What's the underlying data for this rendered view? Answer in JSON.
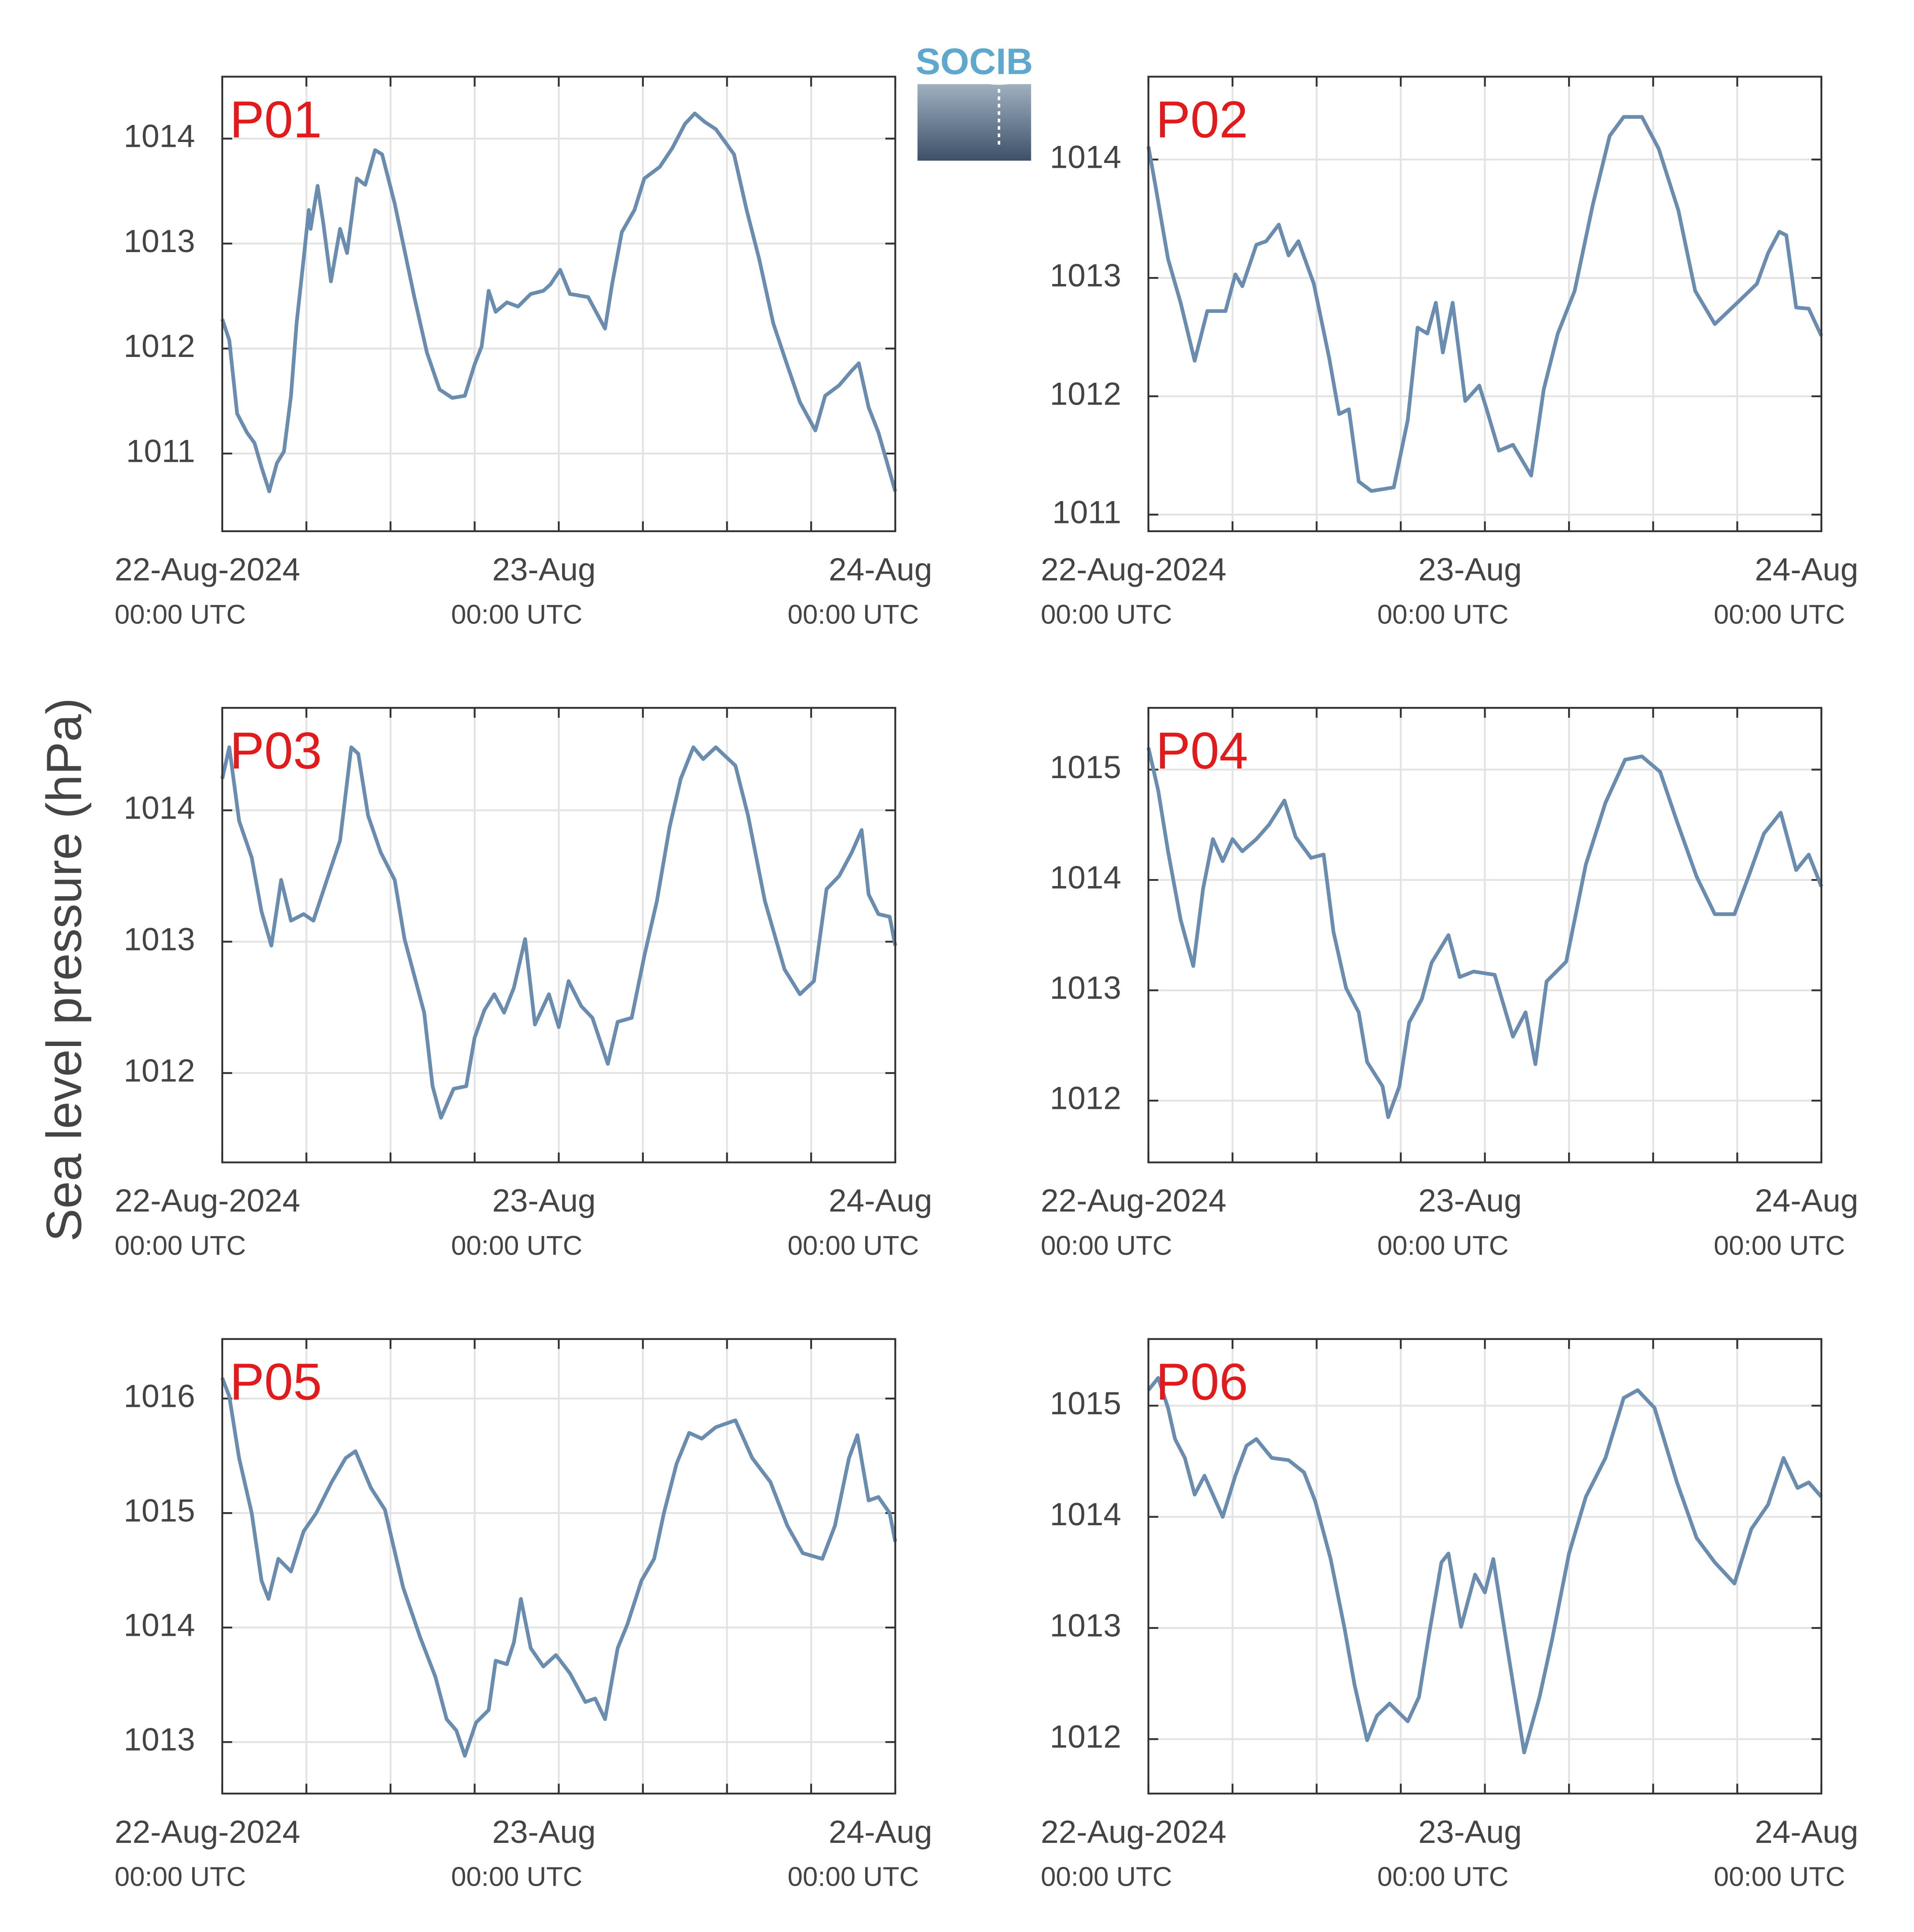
{
  "logo": "SOCIB",
  "ylabel": "Sea level pressure (hPa)",
  "chart_data": [
    {
      "type": "line",
      "title": "P01",
      "xlim": [
        0,
        48
      ],
      "ylim": [
        1010.26,
        1014.59
      ],
      "yticks": [
        1011,
        1012,
        1013,
        1014
      ],
      "grid": true,
      "xticks": [
        {
          "value": 0,
          "label": "22-Aug-2024",
          "sublabel": "00:00 UTC"
        },
        6,
        12,
        18,
        {
          "value": 24,
          "label": "23-Aug",
          "sublabel": "00:00 UTC"
        },
        30,
        36,
        42,
        {
          "value": 48,
          "label": "24-Aug",
          "sublabel": "00:00 UTC"
        }
      ],
      "color": "#6a8caf",
      "x": [
        0,
        0.5,
        1.06,
        1.76,
        2.3,
        2.8,
        3.35,
        3.9,
        4.4,
        4.9,
        5.3,
        5.8,
        6.17,
        6.3,
        6.8,
        7.2,
        7.75,
        8.4,
        8.9,
        9.6,
        10.2,
        10.9,
        11.4,
        12.3,
        13.7,
        14.6,
        15.5,
        16.4,
        17.3,
        18,
        18.5,
        19,
        19.5,
        20.3,
        21.1,
        22,
        22.9,
        23.4,
        24.1,
        24.8,
        26.1,
        27.3,
        27.8,
        28.5,
        29.4,
        30.1,
        31.2,
        32.1,
        33,
        33.7,
        34.4,
        35.2,
        36.5,
        37.4,
        38.3,
        39.3,
        40.2,
        41.2,
        42.3,
        43,
        44,
        44.9,
        45.4,
        46.1,
        46.8,
        48
      ],
      "values": [
        1012.28,
        1012.08,
        1011.38,
        1011.2,
        1011.1,
        1010.87,
        1010.64,
        1010.91,
        1011.02,
        1011.55,
        1012.24,
        1012.85,
        1013.32,
        1013.14,
        1013.55,
        1013.2,
        1012.64,
        1013.14,
        1012.91,
        1013.62,
        1013.56,
        1013.89,
        1013.85,
        1013.38,
        1012.49,
        1011.96,
        1011.61,
        1011.53,
        1011.55,
        1011.85,
        1012.02,
        1012.55,
        1012.35,
        1012.44,
        1012.4,
        1012.52,
        1012.55,
        1012.61,
        1012.75,
        1012.52,
        1012.49,
        1012.19,
        1012.61,
        1013.11,
        1013.32,
        1013.62,
        1013.73,
        1013.91,
        1014.14,
        1014.24,
        1014.16,
        1014.09,
        1013.85,
        1013.32,
        1012.85,
        1012.24,
        1011.88,
        1011.49,
        1011.22,
        1011.55,
        1011.65,
        1011.79,
        1011.86,
        1011.44,
        1011.2,
        1010.64
      ]
    },
    {
      "type": "line",
      "title": "P02",
      "xlim": [
        0,
        48
      ],
      "ylim": [
        1010.86,
        1014.7
      ],
      "yticks": [
        1011,
        1012,
        1013,
        1014
      ],
      "grid": true,
      "xticks": [
        {
          "value": 0,
          "label": "22-Aug-2024",
          "sublabel": "00:00 UTC"
        },
        6,
        12,
        18,
        {
          "value": 24,
          "label": "23-Aug",
          "sublabel": "00:00 UTC"
        },
        30,
        36,
        42,
        {
          "value": 48,
          "label": "24-Aug",
          "sublabel": "00:00 UTC"
        }
      ],
      "color": "#6a8caf",
      "x": [
        0,
        0.5,
        1.4,
        2.3,
        3.3,
        4.2,
        5.5,
        6.2,
        6.7,
        7.7,
        8.4,
        9.3,
        10,
        10.7,
        11.8,
        12.9,
        13.6,
        14.3,
        15,
        15.9,
        17.5,
        18.5,
        19.2,
        19.9,
        20.5,
        21,
        21.7,
        22.6,
        23.6,
        24.1,
        25,
        26,
        27.3,
        28.2,
        29.2,
        30.4,
        31.7,
        32.9,
        33.9,
        35.2,
        36.4,
        37.8,
        39,
        40.4,
        42,
        43.4,
        44.2,
        45,
        45.5,
        46.2,
        47.1,
        48
      ],
      "values": [
        1014.11,
        1013.78,
        1013.16,
        1012.79,
        1012.3,
        1012.72,
        1012.72,
        1013.03,
        1012.93,
        1013.28,
        1013.31,
        1013.45,
        1013.19,
        1013.31,
        1012.95,
        1012.32,
        1011.85,
        1011.89,
        1011.28,
        1011.2,
        1011.23,
        1011.8,
        1012.58,
        1012.53,
        1012.79,
        1012.37,
        1012.79,
        1011.96,
        1012.09,
        1011.9,
        1011.54,
        1011.59,
        1011.33,
        1012.06,
        1012.53,
        1012.89,
        1013.62,
        1014.2,
        1014.36,
        1014.36,
        1014.09,
        1013.57,
        1012.89,
        1012.61,
        1012.79,
        1012.95,
        1013.21,
        1013.39,
        1013.36,
        1012.75,
        1012.74,
        1012.51
      ]
    },
    {
      "type": "line",
      "title": "P03",
      "xlim": [
        0,
        48
      ],
      "ylim": [
        1011.32,
        1014.78
      ],
      "yticks": [
        1012,
        1013,
        1014
      ],
      "grid": true,
      "xticks": [
        {
          "value": 0,
          "label": "22-Aug-2024",
          "sublabel": "00:00 UTC"
        },
        6,
        12,
        18,
        {
          "value": 24,
          "label": "23-Aug",
          "sublabel": "00:00 UTC"
        },
        30,
        36,
        42,
        {
          "value": 48,
          "label": "24-Aug",
          "sublabel": "00:00 UTC"
        }
      ],
      "color": "#6a8caf",
      "x": [
        0,
        0.5,
        1.2,
        2.1,
        2.8,
        3.5,
        4.2,
        4.9,
        5.8,
        6.5,
        7.4,
        8.4,
        9.2,
        9.7,
        10.4,
        11.3,
        12.3,
        13,
        14.4,
        15,
        15.6,
        16.5,
        17.4,
        18,
        18.7,
        19.4,
        20.1,
        20.8,
        21.6,
        22.3,
        23.3,
        24,
        24.7,
        25.6,
        26.4,
        27.5,
        28.2,
        29.2,
        30.1,
        31,
        31.9,
        32.7,
        33.6,
        34.3,
        35.2,
        36.6,
        37.5,
        38.7,
        40.1,
        41.2,
        42.2,
        43.1,
        44,
        44.9,
        45.6,
        46.1,
        46.8,
        47.6,
        48
      ],
      "values": [
        1014.24,
        1014.48,
        1013.92,
        1013.64,
        1013.23,
        1012.97,
        1013.47,
        1013.16,
        1013.21,
        1013.16,
        1013.45,
        1013.77,
        1014.48,
        1014.43,
        1013.96,
        1013.68,
        1013.47,
        1013.02,
        1012.46,
        1011.9,
        1011.66,
        1011.88,
        1011.9,
        1012.27,
        1012.48,
        1012.6,
        1012.46,
        1012.65,
        1013.02,
        1012.37,
        1012.6,
        1012.35,
        1012.7,
        1012.51,
        1012.42,
        1012.07,
        1012.39,
        1012.42,
        1012.89,
        1013.31,
        1013.87,
        1014.24,
        1014.48,
        1014.39,
        1014.48,
        1014.34,
        1013.96,
        1013.31,
        1012.79,
        1012.6,
        1012.7,
        1013.4,
        1013.5,
        1013.68,
        1013.85,
        1013.36,
        1013.21,
        1013.19,
        1012.97
      ]
    },
    {
      "type": "line",
      "title": "P04",
      "xlim": [
        0,
        48
      ],
      "ylim": [
        1011.44,
        1015.56
      ],
      "yticks": [
        1012,
        1013,
        1014,
        1015
      ],
      "grid": true,
      "xticks": [
        {
          "value": 0,
          "label": "22-Aug-2024",
          "sublabel": "00:00 UTC"
        },
        6,
        12,
        18,
        {
          "value": 24,
          "label": "23-Aug",
          "sublabel": "00:00 UTC"
        },
        30,
        36,
        42,
        {
          "value": 48,
          "label": "24-Aug",
          "sublabel": "00:00 UTC"
        }
      ],
      "color": "#6a8caf",
      "x": [
        0,
        0.7,
        1.4,
        2.3,
        3.2,
        3.9,
        4.6,
        5.3,
        6,
        6.7,
        7.7,
        8.6,
        9.7,
        10.5,
        11.6,
        12.5,
        13.2,
        14.1,
        15,
        15.6,
        16.7,
        17.1,
        17.9,
        18.6,
        19.5,
        20.2,
        21.4,
        22.2,
        23.2,
        24.7,
        26,
        26.9,
        27.6,
        28.4,
        29.8,
        31.2,
        32.6,
        34,
        35.2,
        36.5,
        37.7,
        39.1,
        40.4,
        41.8,
        42.8,
        43.9,
        45.1,
        46.2,
        47.1,
        48
      ],
      "values": [
        1015.2,
        1014.81,
        1014.26,
        1013.64,
        1013.22,
        1013.92,
        1014.37,
        1014.17,
        1014.37,
        1014.26,
        1014.37,
        1014.5,
        1014.72,
        1014.39,
        1014.2,
        1014.23,
        1013.53,
        1013.02,
        1012.8,
        1012.35,
        1012.13,
        1011.85,
        1012.13,
        1012.71,
        1012.92,
        1013.25,
        1013.5,
        1013.12,
        1013.17,
        1013.14,
        1012.58,
        1012.8,
        1012.33,
        1013.08,
        1013.26,
        1014.14,
        1014.7,
        1015.09,
        1015.12,
        1014.98,
        1014.53,
        1014.03,
        1013.69,
        1013.69,
        1014.03,
        1014.42,
        1014.61,
        1014.09,
        1014.23,
        1013.94
      ]
    },
    {
      "type": "line",
      "title": "P05",
      "xlim": [
        0,
        48
      ],
      "ylim": [
        1012.55,
        1016.52
      ],
      "yticks": [
        1013,
        1014,
        1015,
        1016
      ],
      "grid": true,
      "xticks": [
        {
          "value": 0,
          "label": "22-Aug-2024",
          "sublabel": "00:00 UTC"
        },
        6,
        12,
        18,
        {
          "value": 24,
          "label": "23-Aug",
          "sublabel": "00:00 UTC"
        },
        30,
        36,
        42,
        {
          "value": 48,
          "label": "24-Aug",
          "sublabel": "00:00 UTC"
        }
      ],
      "color": "#6a8caf",
      "x": [
        0,
        0.5,
        1.2,
        2.1,
        2.8,
        3.3,
        4,
        4.9,
        5.8,
        6.7,
        7.8,
        8.8,
        9.5,
        10.6,
        11.6,
        12.9,
        14.1,
        15.2,
        16,
        16.7,
        17.3,
        18.1,
        19,
        19.5,
        20.3,
        20.8,
        21.3,
        22,
        22.9,
        23.8,
        24.8,
        25.9,
        26.6,
        27.3,
        28.2,
        28.9,
        29.9,
        30.8,
        31.5,
        32.4,
        33.3,
        34.2,
        35.2,
        36.6,
        37.8,
        39.1,
        40.3,
        41.4,
        42.8,
        43.7,
        44.7,
        45.3,
        46.1,
        46.8,
        47.6,
        48
      ],
      "values": [
        1016.18,
        1016.02,
        1015.48,
        1015,
        1014.41,
        1014.25,
        1014.6,
        1014.49,
        1014.84,
        1015,
        1015.27,
        1015.48,
        1015.54,
        1015.22,
        1015.03,
        1014.35,
        1013.92,
        1013.57,
        1013.2,
        1013.1,
        1012.88,
        1013.17,
        1013.28,
        1013.71,
        1013.68,
        1013.87,
        1014.25,
        1013.82,
        1013.66,
        1013.76,
        1013.6,
        1013.35,
        1013.38,
        1013.2,
        1013.82,
        1014.03,
        1014.41,
        1014.6,
        1015,
        1015.43,
        1015.7,
        1015.65,
        1015.75,
        1015.81,
        1015.48,
        1015.27,
        1014.89,
        1014.65,
        1014.6,
        1014.89,
        1015.48,
        1015.68,
        1015.11,
        1015.14,
        1015,
        1014.75
      ]
    },
    {
      "type": "line",
      "title": "P06",
      "xlim": [
        0,
        48
      ],
      "ylim": [
        1011.51,
        1015.6
      ],
      "yticks": [
        1012,
        1013,
        1014,
        1015
      ],
      "grid": true,
      "xticks": [
        {
          "value": 0,
          "label": "22-Aug-2024",
          "sublabel": "00:00 UTC"
        },
        6,
        12,
        18,
        {
          "value": 24,
          "label": "23-Aug",
          "sublabel": "00:00 UTC"
        },
        30,
        36,
        42,
        {
          "value": 48,
          "label": "24-Aug",
          "sublabel": "00:00 UTC"
        }
      ],
      "color": "#6a8caf",
      "x": [
        0,
        0.7,
        1.4,
        1.9,
        2.6,
        3.3,
        4,
        5.3,
        6.2,
        7,
        7.7,
        8.8,
        10,
        11.1,
        11.9,
        13,
        14,
        14.7,
        15.6,
        16.3,
        17.2,
        18.5,
        19.3,
        20,
        20.9,
        21.4,
        22.3,
        23.3,
        24,
        24.6,
        25.6,
        26.8,
        27.9,
        28.8,
        30,
        31.2,
        32.6,
        33.9,
        34.9,
        36.1,
        37.7,
        39.1,
        40.4,
        41.8,
        43,
        44.2,
        45.3,
        46.3,
        47.1,
        48
      ],
      "values": [
        1015.14,
        1015.25,
        1014.98,
        1014.7,
        1014.53,
        1014.2,
        1014.37,
        1014,
        1014.37,
        1014.64,
        1014.7,
        1014.53,
        1014.51,
        1014.4,
        1014.14,
        1013.62,
        1012.99,
        1012.49,
        1011.99,
        1012.21,
        1012.32,
        1012.16,
        1012.38,
        1012.93,
        1013.59,
        1013.67,
        1013.01,
        1013.48,
        1013.32,
        1013.62,
        1012.82,
        1011.88,
        1012.38,
        1012.9,
        1013.67,
        1014.18,
        1014.53,
        1015.07,
        1015.14,
        1014.98,
        1014.31,
        1013.81,
        1013.59,
        1013.4,
        1013.89,
        1014.11,
        1014.53,
        1014.26,
        1014.31,
        1014.18
      ]
    }
  ]
}
